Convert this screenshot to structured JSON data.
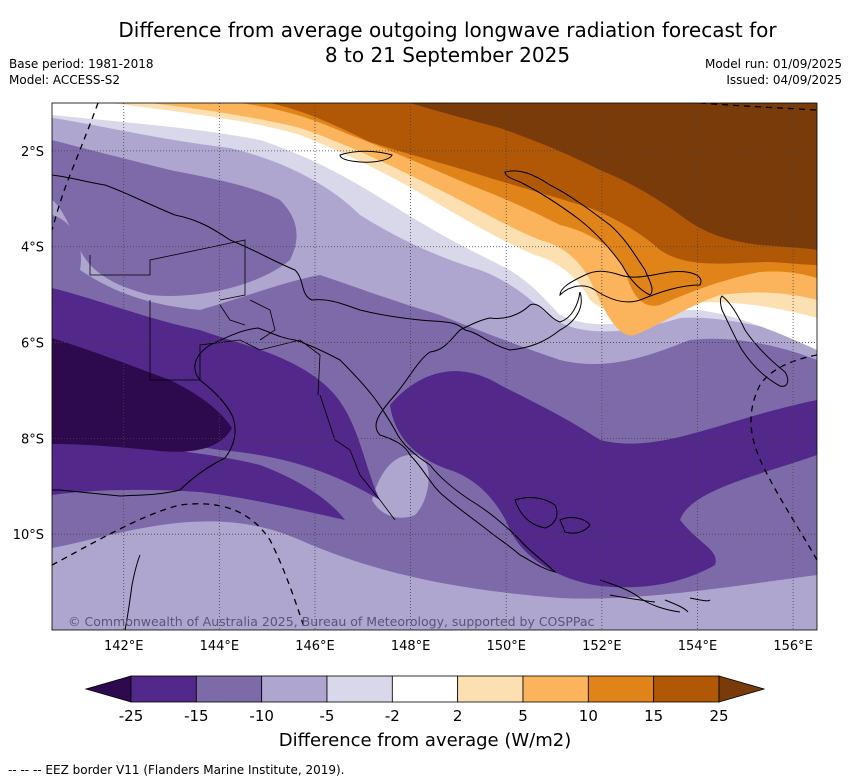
{
  "title": "Difference from average outgoing longwave radiation forecast for\n8 to 21 September 2025",
  "base_period": "Base period: 1981-2018",
  "model": "Model: ACCESS-S2",
  "model_run": "Model run: 01/09/2025",
  "issued": "Issued: 04/09/2025",
  "copyright": "© Commonwealth of Australia 2025, Bureau of Meteorology, supported by COSPPac",
  "map": {
    "lon_range": [
      140.5,
      156.5
    ],
    "lat_range": [
      -12.0,
      -1.0
    ],
    "lon_ticks": [
      142,
      144,
      146,
      148,
      150,
      152,
      154,
      156
    ],
    "lon_tick_labels": [
      "142°E",
      "144°E",
      "146°E",
      "148°E",
      "150°E",
      "152°E",
      "154°E",
      "156°E"
    ],
    "lat_ticks": [
      -2,
      -4,
      -6,
      -8,
      -10
    ],
    "lat_tick_labels": [
      "2°S",
      "4°S",
      "6°S",
      "8°S",
      "10°S"
    ],
    "grid": true
  },
  "colorbar": {
    "label": "Difference from average (W/m2)",
    "tick_labels": [
      "-25",
      "-15",
      "-10",
      "-5",
      "-2",
      "2",
      "5",
      "10",
      "15",
      "25"
    ],
    "under_color": "#2d0a4e",
    "over_color": "#7a3b0a",
    "colors": [
      "#52288a",
      "#7d6aa8",
      "#aea6cf",
      "#d8d8ea",
      "#ffffff",
      "#fde0b2",
      "#fbb45c",
      "#e08319",
      "#b15807"
    ]
  },
  "footnote": "--  --  -- EEZ border V11 (Flanders Marine Institute, 2019)."
}
